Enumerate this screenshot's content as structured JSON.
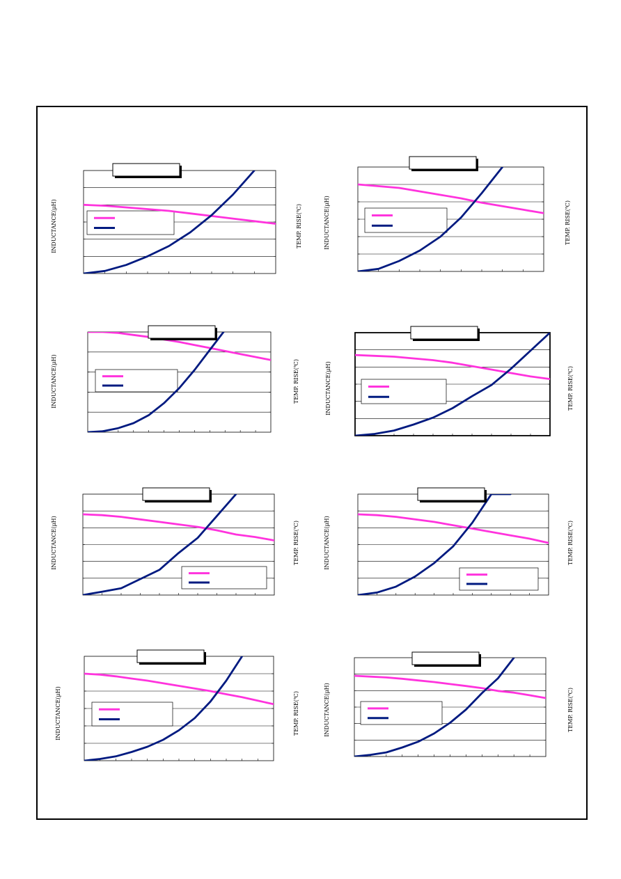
{
  "colors": {
    "inductance": "#ff33dd",
    "temp_rise": "#001a80",
    "frame": "#000000",
    "grid": "#000000"
  },
  "axis_labels": {
    "left": "INDUCTANCE(μH)",
    "right": "TEMP. RISE(℃)"
  },
  "chart_data": [
    {
      "type": "line",
      "title": "",
      "xlabel": "",
      "ylabel": "INDUCTANCE(μH)",
      "y2label": "TEMP. RISE(℃)",
      "xlim": [
        0,
        9
      ],
      "ylim": [
        0,
        6
      ],
      "grid": true,
      "legend": "left-middle",
      "series": [
        {
          "axis": "left",
          "color": "#ff33dd",
          "x": [
            0,
            1,
            2,
            3,
            4,
            5,
            6,
            7,
            8,
            9
          ],
          "values": [
            4.0,
            3.95,
            3.85,
            3.75,
            3.65,
            3.5,
            3.35,
            3.2,
            3.05,
            2.9
          ]
        },
        {
          "axis": "right",
          "color": "#001a80",
          "x": [
            0,
            1,
            2,
            3,
            4,
            5,
            6,
            7,
            8
          ],
          "values": [
            0,
            0.15,
            0.5,
            1.0,
            1.6,
            2.4,
            3.4,
            4.6,
            6.0
          ]
        }
      ]
    },
    {
      "type": "line",
      "title": "",
      "xlabel": "",
      "ylabel": "INDUCTANCE(μH)",
      "y2label": "TEMP. RISE(℃)",
      "xlim": [
        0,
        9
      ],
      "ylim": [
        0,
        6
      ],
      "grid": true,
      "legend": "left-middle",
      "series": [
        {
          "axis": "left",
          "color": "#ff33dd",
          "x": [
            0,
            1,
            2,
            3,
            4,
            5,
            6,
            7,
            8,
            9
          ],
          "values": [
            5.0,
            4.9,
            4.8,
            4.6,
            4.4,
            4.2,
            3.95,
            3.75,
            3.55,
            3.35
          ]
        },
        {
          "axis": "right",
          "color": "#001a80",
          "x": [
            0,
            1,
            2,
            3,
            4,
            5,
            6,
            7
          ],
          "values": [
            0,
            0.15,
            0.6,
            1.2,
            2.0,
            3.1,
            4.5,
            6.0
          ]
        }
      ]
    },
    {
      "type": "line",
      "title": "",
      "xlabel": "",
      "ylabel": "INDUCTANCE(μH)",
      "y2label": "TEMP. RISE(℃)",
      "xlim": [
        0,
        12
      ],
      "ylim": [
        0,
        5
      ],
      "grid": true,
      "legend": "left-middle",
      "series": [
        {
          "axis": "left",
          "color": "#ff33dd",
          "x": [
            0,
            1,
            2,
            3,
            4,
            5,
            6,
            7,
            8,
            9,
            10,
            11,
            12
          ],
          "values": [
            5.0,
            5.0,
            4.95,
            4.85,
            4.75,
            4.62,
            4.5,
            4.35,
            4.2,
            4.05,
            3.9,
            3.75,
            3.6
          ]
        },
        {
          "axis": "right",
          "color": "#001a80",
          "x": [
            0,
            1,
            2,
            3,
            4,
            5,
            6,
            7,
            8,
            9
          ],
          "values": [
            0,
            0.05,
            0.2,
            0.45,
            0.85,
            1.45,
            2.2,
            3.1,
            4.1,
            5.1
          ]
        }
      ]
    },
    {
      "type": "line",
      "title": "",
      "xlabel": "",
      "ylabel": "INDUCTANCE(μH)",
      "y2label": "TEMP. RISE(℃)",
      "xlim": [
        0,
        10
      ],
      "ylim": [
        0,
        6
      ],
      "grid": true,
      "legend": "left-middle",
      "series": [
        {
          "axis": "left",
          "color": "#ff33dd",
          "x": [
            0,
            1,
            2,
            3,
            4,
            5,
            6,
            7,
            8,
            9,
            10
          ],
          "values": [
            4.7,
            4.65,
            4.6,
            4.5,
            4.4,
            4.25,
            4.05,
            3.85,
            3.65,
            3.45,
            3.3
          ]
        },
        {
          "axis": "right",
          "color": "#001a80",
          "x": [
            0,
            1,
            2,
            3,
            4,
            5,
            6,
            7,
            8,
            9,
            10
          ],
          "values": [
            0,
            0.1,
            0.3,
            0.65,
            1.05,
            1.6,
            2.3,
            2.95,
            3.9,
            4.95,
            6.0
          ]
        }
      ]
    },
    {
      "type": "line",
      "title": "",
      "xlabel": "",
      "ylabel": "INDUCTANCE(μH)",
      "y2label": "TEMP. RISE(℃)",
      "xlim": [
        0,
        10
      ],
      "ylim": [
        0,
        6
      ],
      "grid": true,
      "legend": "bottom-right",
      "series": [
        {
          "axis": "left",
          "color": "#ff33dd",
          "x": [
            0,
            1,
            2,
            3,
            4,
            5,
            6,
            7,
            8,
            9,
            10
          ],
          "values": [
            4.8,
            4.75,
            4.65,
            4.5,
            4.35,
            4.2,
            4.05,
            3.85,
            3.6,
            3.45,
            3.25
          ]
        },
        {
          "axis": "right",
          "color": "#001a80",
          "x": [
            0,
            1,
            2,
            3,
            4,
            5,
            6,
            7,
            8
          ],
          "values": [
            0,
            0.2,
            0.4,
            0.95,
            1.5,
            2.5,
            3.4,
            4.7,
            6.0
          ]
        }
      ]
    },
    {
      "type": "line",
      "title": "",
      "xlabel": "",
      "ylabel": "INDUCTANCE(μH)",
      "y2label": "TEMP. RISE(℃)",
      "xlim": [
        0,
        10
      ],
      "ylim": [
        0,
        6
      ],
      "grid": true,
      "legend": "bottom-right",
      "series": [
        {
          "axis": "left",
          "color": "#ff33dd",
          "x": [
            0,
            1,
            2,
            3,
            4,
            5,
            6,
            7,
            8,
            9,
            10
          ],
          "values": [
            4.8,
            4.75,
            4.65,
            4.5,
            4.35,
            4.15,
            3.95,
            3.75,
            3.55,
            3.35,
            3.1
          ]
        },
        {
          "axis": "right",
          "color": "#001a80",
          "x": [
            0,
            1,
            2,
            3,
            4,
            5,
            6,
            7,
            8
          ],
          "values": [
            0,
            0.15,
            0.5,
            1.1,
            1.9,
            2.9,
            4.3,
            6.0,
            6.0
          ]
        }
      ]
    },
    {
      "type": "line",
      "title": "",
      "xlabel": "",
      "ylabel": "INDUCTANCE(μH)",
      "y2label": "TEMP. RISE(℃)",
      "xlim": [
        0,
        12
      ],
      "ylim": [
        0,
        6
      ],
      "grid": true,
      "legend": "left-middle",
      "series": [
        {
          "axis": "left",
          "color": "#ff33dd",
          "x": [
            0,
            1,
            2,
            3,
            4,
            5,
            6,
            7,
            8,
            9,
            10,
            11,
            12
          ],
          "values": [
            5.0,
            4.95,
            4.85,
            4.72,
            4.6,
            4.45,
            4.3,
            4.15,
            4.0,
            3.82,
            3.65,
            3.45,
            3.25
          ]
        },
        {
          "axis": "right",
          "color": "#001a80",
          "x": [
            0,
            1,
            2,
            3,
            4,
            5,
            6,
            7,
            8,
            9,
            10
          ],
          "values": [
            0,
            0.1,
            0.25,
            0.5,
            0.8,
            1.2,
            1.75,
            2.45,
            3.4,
            4.6,
            6.0
          ]
        }
      ]
    },
    {
      "type": "line",
      "title": "",
      "xlabel": "",
      "ylabel": "INDUCTANCE(μH)",
      "y2label": "TEMP. RISE(℃)",
      "xlim": [
        0,
        12
      ],
      "ylim": [
        0,
        6
      ],
      "grid": true,
      "legend": "left-middle",
      "series": [
        {
          "axis": "left",
          "color": "#ff33dd",
          "x": [
            0,
            1,
            2,
            3,
            4,
            5,
            6,
            7,
            8,
            9,
            10,
            11,
            12
          ],
          "values": [
            4.9,
            4.85,
            4.8,
            4.72,
            4.62,
            4.52,
            4.4,
            4.28,
            4.15,
            3.98,
            3.88,
            3.72,
            3.55
          ]
        },
        {
          "axis": "right",
          "color": "#001a80",
          "x": [
            0,
            1,
            2,
            3,
            4,
            5,
            6,
            7,
            8,
            9,
            10
          ],
          "values": [
            0,
            0.1,
            0.25,
            0.55,
            0.9,
            1.4,
            2.05,
            2.85,
            3.85,
            4.75,
            6.0
          ]
        }
      ]
    }
  ]
}
